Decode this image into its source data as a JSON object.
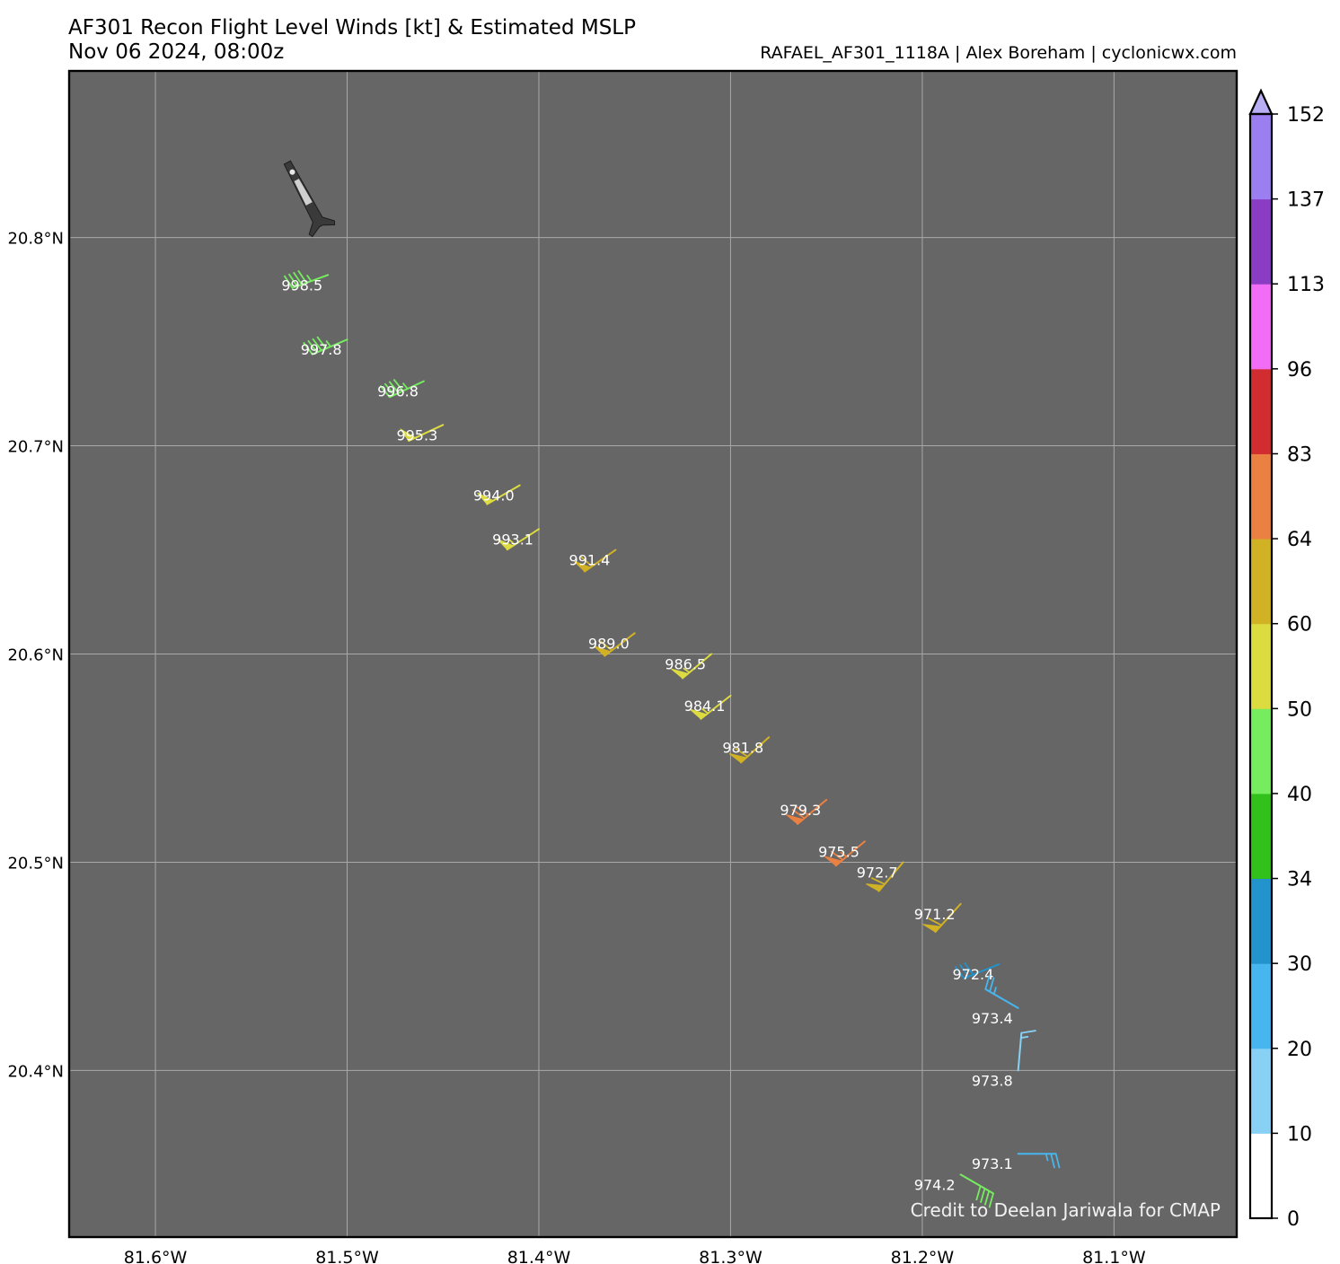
{
  "header": {
    "title": "AF301 Recon Flight Level Winds [kt] & Estimated MSLP",
    "subtitle": "Nov 06 2024, 08:00z",
    "credit": "RAFAEL_AF301_1118A | Alex Boreham | cyclonicwx.com"
  },
  "map_credit": "Credit to Deelan Jariwala for CMAP",
  "chart_data": {
    "type": "scatter",
    "title": "AF301 Recon Flight Level Winds [kt] & Estimated MSLP",
    "xlim": [
      -81.645,
      -81.036
    ],
    "ylim": [
      20.32,
      20.88
    ],
    "grid": true,
    "background_color": "#666666",
    "x_ticks": [
      {
        "value": -81.6,
        "label": "81.6°W"
      },
      {
        "value": -81.5,
        "label": "81.5°W"
      },
      {
        "value": -81.4,
        "label": "81.4°W"
      },
      {
        "value": -81.3,
        "label": "81.3°W"
      },
      {
        "value": -81.2,
        "label": "81.2°W"
      },
      {
        "value": -81.1,
        "label": "81.1°W"
      }
    ],
    "y_ticks": [
      {
        "value": 20.8,
        "label": "20.8°N"
      },
      {
        "value": 20.7,
        "label": "20.7°N"
      },
      {
        "value": 20.6,
        "label": "20.6°N"
      },
      {
        "value": 20.5,
        "label": "20.5°N"
      },
      {
        "value": 20.4,
        "label": "20.4°N"
      }
    ],
    "aircraft_position": {
      "lon": -81.522,
      "lat": 20.82
    },
    "observations": [
      {
        "lon": -81.51,
        "lat": 20.782,
        "wind_kt": 45,
        "wind_dir": 250,
        "mslp": "998.5"
      },
      {
        "lon": -81.5,
        "lat": 20.751,
        "wind_kt": 45,
        "wind_dir": 247,
        "mslp": "997.8"
      },
      {
        "lon": -81.46,
        "lat": 20.731,
        "wind_kt": 45,
        "wind_dir": 245,
        "mslp": "996.8"
      },
      {
        "lon": -81.45,
        "lat": 20.71,
        "wind_kt": 50,
        "wind_dir": 245,
        "mslp": "995.3"
      },
      {
        "lon": -81.41,
        "lat": 20.681,
        "wind_kt": 50,
        "wind_dir": 240,
        "mslp": "994.0"
      },
      {
        "lon": -81.4,
        "lat": 20.66,
        "wind_kt": 55,
        "wind_dir": 237,
        "mslp": "993.1"
      },
      {
        "lon": -81.36,
        "lat": 20.65,
        "wind_kt": 60,
        "wind_dir": 235,
        "mslp": "991.4"
      },
      {
        "lon": -81.35,
        "lat": 20.61,
        "wind_kt": 60,
        "wind_dir": 233,
        "mslp": "989.0"
      },
      {
        "lon": -81.31,
        "lat": 20.6,
        "wind_kt": 55,
        "wind_dir": 230,
        "mslp": "986.5"
      },
      {
        "lon": -81.3,
        "lat": 20.58,
        "wind_kt": 55,
        "wind_dir": 232,
        "mslp": "984.1"
      },
      {
        "lon": -81.28,
        "lat": 20.56,
        "wind_kt": 60,
        "wind_dir": 228,
        "mslp": "981.8"
      },
      {
        "lon": -81.25,
        "lat": 20.53,
        "wind_kt": 70,
        "wind_dir": 230,
        "mslp": "979.3"
      },
      {
        "lon": -81.23,
        "lat": 20.51,
        "wind_kt": 65,
        "wind_dir": 230,
        "mslp": "975.5"
      },
      {
        "lon": -81.21,
        "lat": 20.5,
        "wind_kt": 60,
        "wind_dir": 220,
        "mslp": "972.7"
      },
      {
        "lon": -81.18,
        "lat": 20.48,
        "wind_kt": 60,
        "wind_dir": 222,
        "mslp": "971.2"
      },
      {
        "lon": -81.16,
        "lat": 20.451,
        "wind_kt": 30,
        "wind_dir": 248,
        "mslp": "972.4"
      },
      {
        "lon": -81.15,
        "lat": 20.43,
        "wind_kt": 25,
        "wind_dir": 300,
        "mslp": "973.4"
      },
      {
        "lon": -81.15,
        "lat": 20.4,
        "wind_kt": 15,
        "wind_dir": 5,
        "mslp": "973.8"
      },
      {
        "lon": -81.15,
        "lat": 20.36,
        "wind_kt": 25,
        "wind_dir": 90,
        "mslp": "973.1"
      },
      {
        "lon": -81.18,
        "lat": 20.35,
        "wind_kt": 40,
        "wind_dir": 120,
        "mslp": "974.2"
      }
    ],
    "colorbar": {
      "label_values": [
        "0",
        "10",
        "20",
        "30",
        "34",
        "40",
        "50",
        "60",
        "64",
        "83",
        "96",
        "113",
        "137",
        "152"
      ],
      "colors": [
        "#ffffff",
        "#88d1f5",
        "#48b6ee",
        "#2293cd",
        "#32c11a",
        "#76ec5f",
        "#dcdb40",
        "#d1b224",
        "#ea8143",
        "#d12c30",
        "#f26df6",
        "#8a3dc3",
        "#9b7ef0",
        "#b8aef3"
      ]
    }
  }
}
